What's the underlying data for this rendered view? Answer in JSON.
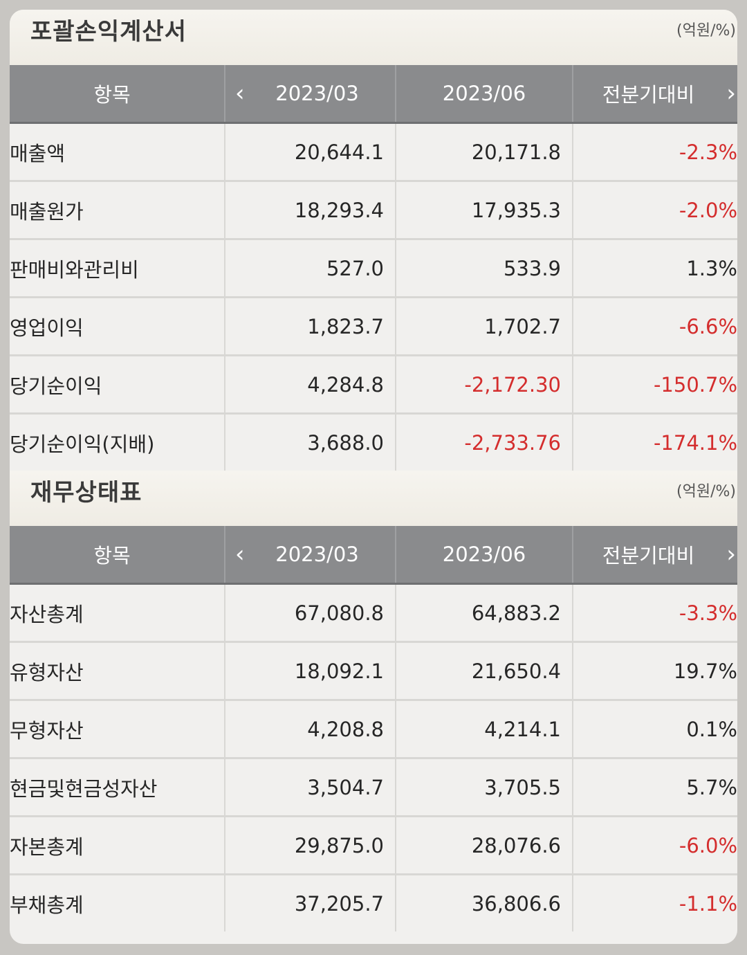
{
  "colors": {
    "negative": "#d42d2d",
    "header_bg": "#8a8b8d",
    "background": "#f1f0ee"
  },
  "income_statement": {
    "title": "포괄손익계산서",
    "unit": "(억원/%)",
    "columns": [
      "항목",
      "2023/03",
      "2023/06",
      "전분기대비"
    ],
    "prev_icon": "chevron-left-icon",
    "next_icon": "chevron-right-icon",
    "prev_glyph": "‹",
    "next_glyph": "›",
    "rows": [
      {
        "label": "매출액",
        "q1": "20,644.1",
        "q2": "20,171.8",
        "change": "-2.3%"
      },
      {
        "label": "매출원가",
        "q1": "18,293.4",
        "q2": "17,935.3",
        "change": "-2.0%"
      },
      {
        "label": "판매비와관리비",
        "q1": "527.0",
        "q2": "533.9",
        "change": "1.3%"
      },
      {
        "label": "영업이익",
        "q1": "1,823.7",
        "q2": "1,702.7",
        "change": "-6.6%"
      },
      {
        "label": "당기순이익",
        "q1": "4,284.8",
        "q2": "-2,172.30",
        "change": "-150.7%"
      },
      {
        "label": "당기순이익(지배)",
        "q1": "3,688.0",
        "q2": "-2,733.76",
        "change": "-174.1%"
      }
    ]
  },
  "balance_sheet": {
    "title": "재무상태표",
    "unit": "(억원/%)",
    "columns": [
      "항목",
      "2023/03",
      "2023/06",
      "전분기대비"
    ],
    "prev_icon": "chevron-left-icon",
    "next_icon": "chevron-right-icon",
    "prev_glyph": "‹",
    "next_glyph": "›",
    "rows": [
      {
        "label": "자산총계",
        "q1": "67,080.8",
        "q2": "64,883.2",
        "change": "-3.3%"
      },
      {
        "label": "유형자산",
        "q1": "18,092.1",
        "q2": "21,650.4",
        "change": "19.7%"
      },
      {
        "label": "무형자산",
        "q1": "4,208.8",
        "q2": "4,214.1",
        "change": "0.1%"
      },
      {
        "label": "현금및현금성자산",
        "q1": "3,504.7",
        "q2": "3,705.5",
        "change": "5.7%"
      },
      {
        "label": "자본총계",
        "q1": "29,875.0",
        "q2": "28,076.6",
        "change": "-6.0%"
      },
      {
        "label": "부채총계",
        "q1": "37,205.7",
        "q2": "36,806.6",
        "change": "-1.1%"
      }
    ]
  }
}
